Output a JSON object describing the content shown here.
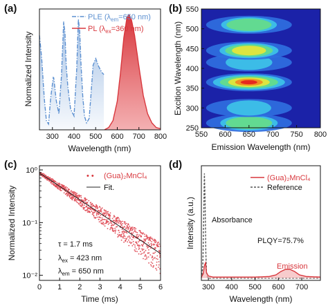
{
  "chart_data": [
    {
      "panel": "(a)",
      "type": "line",
      "xlabel": "Wavelength (nm)",
      "ylabel": "Normalized Intensity",
      "xlim": [
        240,
        800
      ],
      "xticks": [
        "300",
        "400",
        "500",
        "600",
        "700",
        "800"
      ],
      "series": [
        {
          "name": "PLE (λem=650 nm)",
          "color": "#5b8fd0",
          "style": "dash-dot",
          "x": [
            240,
            250,
            262,
            272,
            282,
            292,
            305,
            318,
            330,
            342,
            352,
            358,
            364,
            372,
            384,
            400,
            412,
            420,
            426,
            432,
            440,
            448,
            458,
            470,
            478,
            488,
            500,
            514,
            528,
            538
          ],
          "y": [
            0.82,
            0.63,
            0.28,
            0.08,
            0.05,
            0.28,
            0.47,
            0.25,
            0.14,
            0.48,
            0.94,
            0.84,
            0.55,
            0.36,
            0.18,
            0.12,
            0.52,
            0.96,
            0.86,
            0.58,
            0.3,
            0.12,
            0.06,
            0.1,
            0.3,
            0.56,
            0.62,
            0.55,
            0.5,
            0.48
          ]
        },
        {
          "name": "PL (λex=360 nm)",
          "color": "#d8373d",
          "style": "solid",
          "x": [
            540,
            560,
            580,
            600,
            615,
            630,
            645,
            655,
            665,
            680,
            700,
            720,
            740,
            760,
            780,
            800
          ],
          "y": [
            0.0,
            0.02,
            0.08,
            0.25,
            0.5,
            0.8,
            0.98,
            1.0,
            0.96,
            0.82,
            0.55,
            0.3,
            0.14,
            0.06,
            0.02,
            0.01
          ]
        }
      ],
      "legend": [
        "PLE (λ",
        "em",
        "=650 nm)",
        "PL (λ",
        "ex",
        "=360 nm)"
      ]
    },
    {
      "panel": "(b)",
      "type": "heatmap",
      "xlabel": "Emission Wavelength (nm)",
      "ylabel": "Excition Wavelength (nm)",
      "xlim": [
        550,
        800
      ],
      "ylim": [
        250,
        550
      ],
      "xticks": [
        "550",
        "600",
        "650",
        "700",
        "750",
        "800"
      ],
      "yticks": [
        "250",
        "300",
        "350",
        "400",
        "450",
        "500",
        "550"
      ],
      "emission_center": 650,
      "bands": [
        {
          "excitation": 262,
          "intensity": 0.55
        },
        {
          "excitation": 300,
          "intensity": 0.15
        },
        {
          "excitation": 365,
          "intensity": 1.0
        },
        {
          "excitation": 415,
          "intensity": 0.22
        },
        {
          "excitation": 445,
          "intensity": 0.6
        },
        {
          "excitation": 510,
          "intensity": 0.5
        }
      ]
    },
    {
      "panel": "(c)",
      "type": "scatter",
      "xlabel": "Time (ms)",
      "ylabel": "Normalized Intensity",
      "xlim": [
        0,
        6
      ],
      "ylim": [
        0.008,
        1.2
      ],
      "yscale": "log",
      "xticks": [
        "0",
        "1",
        "2",
        "3",
        "4",
        "5",
        "6"
      ],
      "yticks": [
        "10⁰",
        "10⁻¹",
        "10⁻²"
      ],
      "tau_ms": 1.7,
      "series": [
        {
          "name": "(Gua)₂MnCl₄",
          "color": "#e0505a"
        },
        {
          "name": "Fit.",
          "color": "#222222"
        }
      ],
      "annotations": [
        "τ = 1.7 ms",
        "λex = 423 nm",
        "λem = 650 nm"
      ],
      "ann_parts": {
        "tau": "τ = 1.7 ms",
        "lam": "λ",
        "ex_sub": "ex",
        "ex_val": " = 423 nm",
        "em_sub": "em",
        "em_val": " = 650 nm"
      }
    },
    {
      "panel": "(d)",
      "type": "line",
      "xlabel": "Wavelength (nm)",
      "ylabel": "Intensity (a.u.)",
      "xlim": [
        270,
        780
      ],
      "xticks": [
        "300",
        "400",
        "500",
        "600",
        "700"
      ],
      "series": [
        {
          "name": "(Gua)₂MnCl₄",
          "color": "#d8373d",
          "x": [
            270,
            278,
            284,
            288,
            292,
            300,
            320,
            400,
            500,
            560,
            590,
            610,
            630,
            650,
            670,
            690,
            720,
            780
          ],
          "y": [
            0.01,
            0.04,
            0.12,
            0.14,
            0.05,
            0.02,
            0.01,
            0.01,
            0.01,
            0.015,
            0.03,
            0.06,
            0.08,
            0.08,
            0.06,
            0.03,
            0.015,
            0.01
          ]
        },
        {
          "name": "Reference",
          "color": "#555555",
          "x": [
            270,
            276,
            280,
            283,
            286,
            289,
            292,
            296,
            300,
            320,
            780
          ],
          "y": [
            0.0,
            0.1,
            0.55,
            0.95,
            0.7,
            0.25,
            0.05,
            0.01,
            0.0,
            0.0,
            0.0
          ]
        }
      ],
      "annotations": [
        "Absorbance",
        "PLQY=75.7%",
        "Emission"
      ]
    }
  ]
}
